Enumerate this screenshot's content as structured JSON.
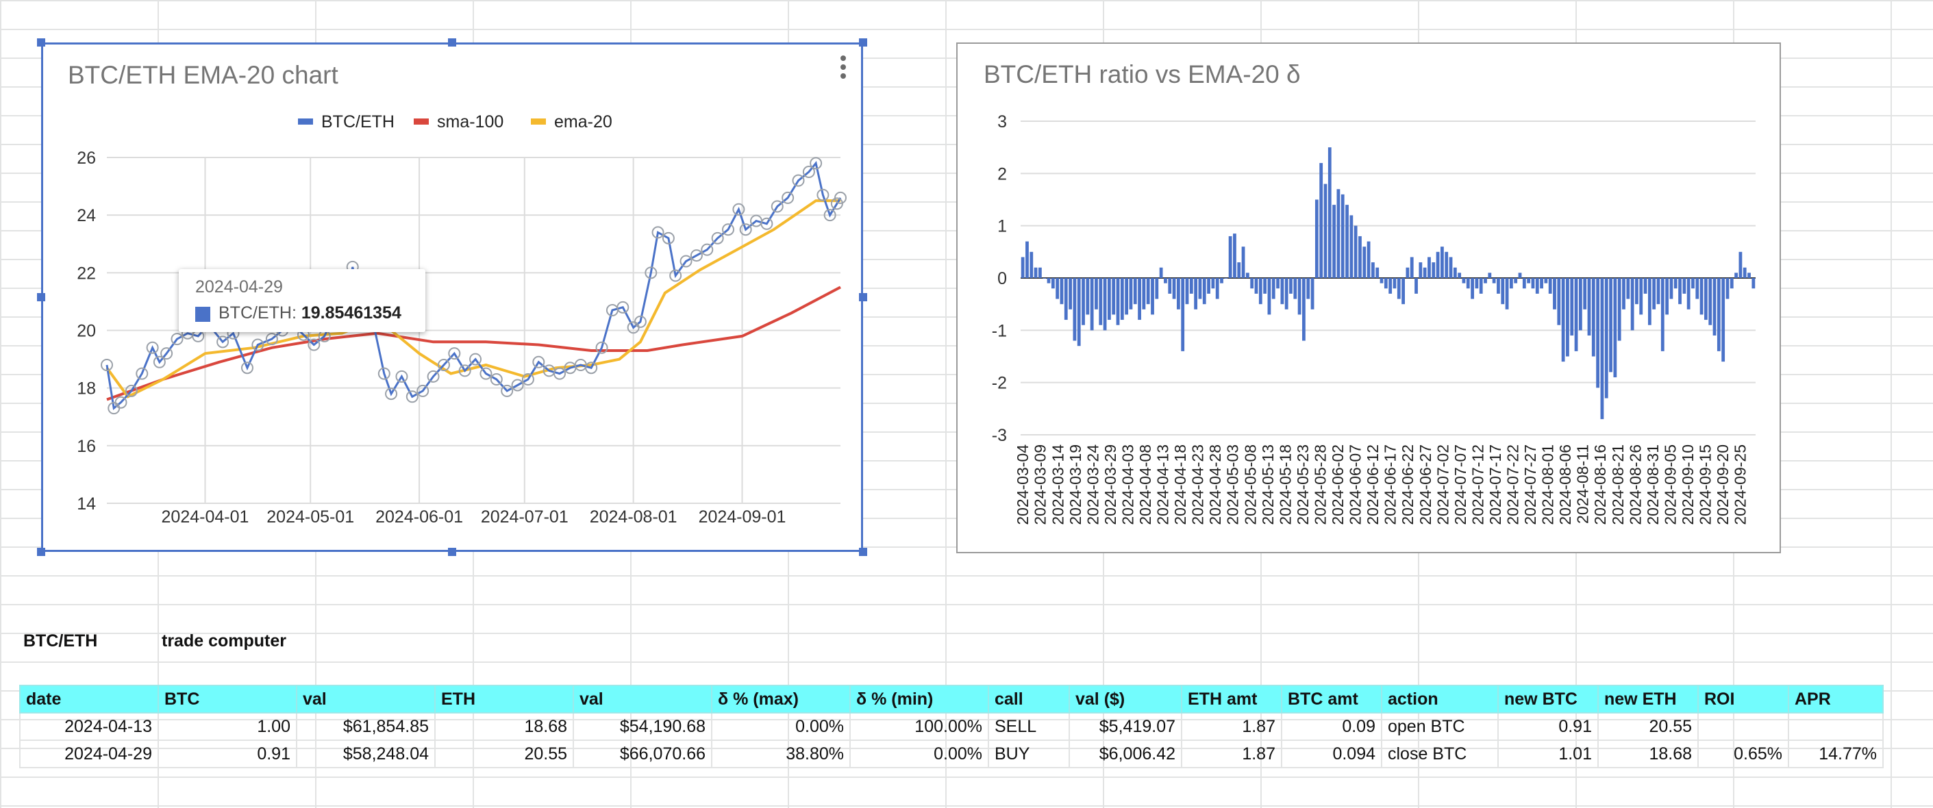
{
  "chart1": {
    "title": "BTC/ETH EMA-20 chart",
    "legend": [
      {
        "name": "BTC/ETH",
        "color": "#4a72c8"
      },
      {
        "name": "sma-100",
        "color": "#d9473d"
      },
      {
        "name": "ema-20",
        "color": "#f4b92e"
      }
    ],
    "tooltip": {
      "date": "2024-04-29",
      "series": "BTC/ETH",
      "value": "19.85461354"
    }
  },
  "chart2": {
    "title": "BTC/ETH ratio vs EMA-20 δ"
  },
  "chart_data": [
    {
      "type": "line",
      "title": "BTC/ETH EMA-20 chart",
      "x_range": [
        "2024-03-04",
        "2024-09-29"
      ],
      "x_ticks": [
        "2024-04-01",
        "2024-05-01",
        "2024-06-01",
        "2024-07-01",
        "2024-08-01",
        "2024-09-01"
      ],
      "y_ticks": [
        "14",
        "16",
        "18",
        "20",
        "22",
        "24",
        "26"
      ],
      "ylim": [
        14,
        26
      ],
      "legend_position": "top",
      "grid": true,
      "series": [
        {
          "name": "BTC/ETH",
          "color": "#4a72c8",
          "points": [
            [
              "2024-03-04",
              18.8
            ],
            [
              "2024-03-06",
              17.3
            ],
            [
              "2024-03-08",
              17.5
            ],
            [
              "2024-03-11",
              17.9
            ],
            [
              "2024-03-14",
              18.5
            ],
            [
              "2024-03-17",
              19.4
            ],
            [
              "2024-03-19",
              18.9
            ],
            [
              "2024-03-21",
              19.2
            ],
            [
              "2024-03-24",
              19.7
            ],
            [
              "2024-03-27",
              19.9
            ],
            [
              "2024-03-30",
              19.8
            ],
            [
              "2024-04-02",
              20.2
            ],
            [
              "2024-04-06",
              19.6
            ],
            [
              "2024-04-09",
              19.9
            ],
            [
              "2024-04-13",
              18.7
            ],
            [
              "2024-04-16",
              19.5
            ],
            [
              "2024-04-20",
              19.7
            ],
            [
              "2024-04-23",
              20.0
            ],
            [
              "2024-04-26",
              20.2
            ],
            [
              "2024-04-29",
              19.85
            ],
            [
              "2024-05-02",
              19.5
            ],
            [
              "2024-05-05",
              19.8
            ],
            [
              "2024-05-08",
              20.6
            ],
            [
              "2024-05-11",
              20.3
            ],
            [
              "2024-05-13",
              22.2
            ],
            [
              "2024-05-16",
              20.7
            ],
            [
              "2024-05-19",
              20.2
            ],
            [
              "2024-05-22",
              18.5
            ],
            [
              "2024-05-24",
              17.8
            ],
            [
              "2024-05-27",
              18.4
            ],
            [
              "2024-05-30",
              17.7
            ],
            [
              "2024-06-02",
              17.9
            ],
            [
              "2024-06-05",
              18.4
            ],
            [
              "2024-06-08",
              18.8
            ],
            [
              "2024-06-11",
              19.2
            ],
            [
              "2024-06-14",
              18.6
            ],
            [
              "2024-06-17",
              19.0
            ],
            [
              "2024-06-20",
              18.5
            ],
            [
              "2024-06-23",
              18.3
            ],
            [
              "2024-06-26",
              17.9
            ],
            [
              "2024-06-29",
              18.1
            ],
            [
              "2024-07-02",
              18.3
            ],
            [
              "2024-07-05",
              18.9
            ],
            [
              "2024-07-08",
              18.6
            ],
            [
              "2024-07-11",
              18.5
            ],
            [
              "2024-07-14",
              18.7
            ],
            [
              "2024-07-17",
              18.8
            ],
            [
              "2024-07-20",
              18.7
            ],
            [
              "2024-07-23",
              19.4
            ],
            [
              "2024-07-26",
              20.7
            ],
            [
              "2024-07-29",
              20.8
            ],
            [
              "2024-08-01",
              20.1
            ],
            [
              "2024-08-03",
              20.3
            ],
            [
              "2024-08-06",
              22.0
            ],
            [
              "2024-08-08",
              23.4
            ],
            [
              "2024-08-11",
              23.2
            ],
            [
              "2024-08-13",
              21.9
            ],
            [
              "2024-08-16",
              22.4
            ],
            [
              "2024-08-19",
              22.6
            ],
            [
              "2024-08-22",
              22.8
            ],
            [
              "2024-08-25",
              23.2
            ],
            [
              "2024-08-28",
              23.5
            ],
            [
              "2024-08-31",
              24.2
            ],
            [
              "2024-09-02",
              23.5
            ],
            [
              "2024-09-05",
              23.8
            ],
            [
              "2024-09-08",
              23.7
            ],
            [
              "2024-09-11",
              24.3
            ],
            [
              "2024-09-14",
              24.6
            ],
            [
              "2024-09-17",
              25.2
            ],
            [
              "2024-09-20",
              25.5
            ],
            [
              "2024-09-22",
              25.8
            ],
            [
              "2024-09-24",
              24.7
            ],
            [
              "2024-09-26",
              24.0
            ],
            [
              "2024-09-28",
              24.4
            ],
            [
              "2024-09-29",
              24.6
            ]
          ]
        },
        {
          "name": "sma-100",
          "color": "#d9473d",
          "points": [
            [
              "2024-03-04",
              17.6
            ],
            [
              "2024-03-20",
              18.3
            ],
            [
              "2024-04-05",
              18.9
            ],
            [
              "2024-04-20",
              19.4
            ],
            [
              "2024-05-05",
              19.7
            ],
            [
              "2024-05-20",
              19.9
            ],
            [
              "2024-06-05",
              19.6
            ],
            [
              "2024-06-20",
              19.6
            ],
            [
              "2024-07-05",
              19.5
            ],
            [
              "2024-07-20",
              19.3
            ],
            [
              "2024-08-05",
              19.3
            ],
            [
              "2024-08-15",
              19.5
            ],
            [
              "2024-09-01",
              19.8
            ],
            [
              "2024-09-15",
              20.6
            ],
            [
              "2024-09-29",
              21.5
            ]
          ]
        },
        {
          "name": "ema-20",
          "color": "#f4b92e",
          "points": [
            [
              "2024-03-04",
              18.7
            ],
            [
              "2024-03-10",
              17.7
            ],
            [
              "2024-03-20",
              18.3
            ],
            [
              "2024-04-01",
              19.2
            ],
            [
              "2024-04-15",
              19.4
            ],
            [
              "2024-04-29",
              19.8
            ],
            [
              "2024-05-10",
              19.9
            ],
            [
              "2024-05-20",
              20.4
            ],
            [
              "2024-06-01",
              19.2
            ],
            [
              "2024-06-10",
              18.5
            ],
            [
              "2024-06-20",
              18.8
            ],
            [
              "2024-07-01",
              18.4
            ],
            [
              "2024-07-10",
              18.7
            ],
            [
              "2024-07-20",
              18.8
            ],
            [
              "2024-07-28",
              19.0
            ],
            [
              "2024-08-03",
              19.6
            ],
            [
              "2024-08-10",
              21.3
            ],
            [
              "2024-08-20",
              22.1
            ],
            [
              "2024-09-01",
              22.9
            ],
            [
              "2024-09-10",
              23.5
            ],
            [
              "2024-09-22",
              24.5
            ],
            [
              "2024-09-29",
              24.5
            ]
          ]
        }
      ]
    },
    {
      "type": "bar",
      "title": "BTC/ETH ratio vs EMA-20 δ",
      "ylim": [
        -3,
        3
      ],
      "y_ticks": [
        "3",
        "2",
        "1",
        "0",
        "-1",
        "-2",
        "-3"
      ],
      "x_start": "2024-03-04",
      "x_end": "2024-09-29",
      "grid": true,
      "x_ticks": [
        "2024-03-04",
        "2024-03-09",
        "2024-03-14",
        "2024-03-19",
        "2024-03-24",
        "2024-03-29",
        "2024-04-03",
        "2024-04-08",
        "2024-04-13",
        "2024-04-18",
        "2024-04-23",
        "2024-04-28",
        "2024-05-03",
        "2024-05-08",
        "2024-05-13",
        "2024-05-18",
        "2024-05-23",
        "2024-05-28",
        "2024-06-02",
        "2024-06-07",
        "2024-06-12",
        "2024-06-17",
        "2024-06-22",
        "2024-06-27",
        "2024-07-02",
        "2024-07-07",
        "2024-07-12",
        "2024-07-17",
        "2024-07-22",
        "2024-07-27",
        "2024-08-01",
        "2024-08-06",
        "2024-08-11",
        "2024-08-16",
        "2024-08-21",
        "2024-08-26",
        "2024-08-31",
        "2024-09-05",
        "2024-09-10",
        "2024-09-15",
        "2024-09-20",
        "2024-09-25"
      ],
      "values": [
        0.4,
        0.7,
        0.5,
        0.2,
        0.2,
        0.0,
        -0.1,
        -0.2,
        -0.4,
        -0.5,
        -0.8,
        -0.6,
        -1.2,
        -1.3,
        -0.9,
        -0.7,
        -1.0,
        -0.6,
        -0.9,
        -1.0,
        -0.8,
        -0.7,
        -0.9,
        -0.8,
        -0.7,
        -0.6,
        -0.5,
        -0.8,
        -0.6,
        -0.5,
        -0.7,
        -0.4,
        0.2,
        -0.1,
        -0.3,
        -0.4,
        -0.6,
        -1.4,
        -0.5,
        -0.3,
        -0.6,
        -0.4,
        -0.5,
        -0.3,
        -0.2,
        -0.4,
        -0.1,
        0.0,
        0.8,
        0.85,
        0.3,
        0.6,
        0.1,
        -0.2,
        -0.3,
        -0.5,
        -0.3,
        -0.7,
        -0.4,
        -0.2,
        -0.5,
        -0.6,
        -0.3,
        -0.4,
        -0.7,
        -1.2,
        -0.4,
        -0.6,
        1.5,
        2.2,
        1.8,
        2.5,
        1.4,
        1.7,
        1.6,
        1.4,
        1.2,
        1.0,
        0.8,
        0.6,
        0.7,
        0.3,
        0.2,
        -0.1,
        -0.2,
        -0.3,
        -0.2,
        -0.4,
        -0.5,
        0.2,
        0.4,
        -0.3,
        0.3,
        0.2,
        0.4,
        0.3,
        0.5,
        0.6,
        0.5,
        0.4,
        0.2,
        0.1,
        -0.1,
        -0.2,
        -0.4,
        -0.2,
        -0.3,
        -0.1,
        0.1,
        -0.1,
        -0.3,
        -0.5,
        -0.6,
        -0.2,
        -0.1,
        0.1,
        -0.2,
        -0.1,
        -0.2,
        -0.3,
        -0.2,
        -0.1,
        -0.3,
        -0.6,
        -0.9,
        -1.6,
        -1.5,
        -1.1,
        -1.4,
        -1.0,
        -0.6,
        -1.1,
        -1.5,
        -2.1,
        -2.7,
        -2.3,
        -1.8,
        -1.9,
        -1.2,
        -0.6,
        -0.4,
        -1.0,
        -0.5,
        -0.7,
        -0.3,
        -0.9,
        -0.6,
        -0.5,
        -1.4,
        -0.7,
        -0.4,
        -0.2,
        -0.5,
        -0.3,
        -0.6,
        -0.2,
        -0.4,
        -0.7,
        -0.8,
        -0.9,
        -1.1,
        -1.4,
        -1.6,
        -0.4,
        -0.2,
        0.1,
        0.5,
        0.2,
        0.1,
        -0.2
      ]
    }
  ],
  "sheet": {
    "label_a": "BTC/ETH",
    "label_b": "trade computer",
    "headers": [
      "date",
      "BTC",
      "val",
      "ETH",
      "val",
      "δ % (max)",
      "δ % (min)",
      "call",
      "val ($)",
      "ETH amt",
      "BTC amt",
      "action",
      "new BTC",
      "new ETH",
      "ROI",
      "APR"
    ],
    "rows": [
      [
        "2024-04-13",
        "1.00",
        "$61,854.85",
        "18.68",
        "$54,190.68",
        "0.00%",
        "100.00%",
        "SELL",
        "$5,419.07",
        "1.87",
        "0.09",
        "open BTC",
        "0.91",
        "20.55",
        "",
        ""
      ],
      [
        "2024-04-29",
        "0.91",
        "$58,248.04",
        "20.55",
        "$66,070.66",
        "38.80%",
        "0.00%",
        "BUY",
        "$6,006.42",
        "1.87",
        "0.094",
        "close BTC",
        "1.01",
        "18.68",
        "0.65%",
        "14.77%"
      ]
    ]
  }
}
